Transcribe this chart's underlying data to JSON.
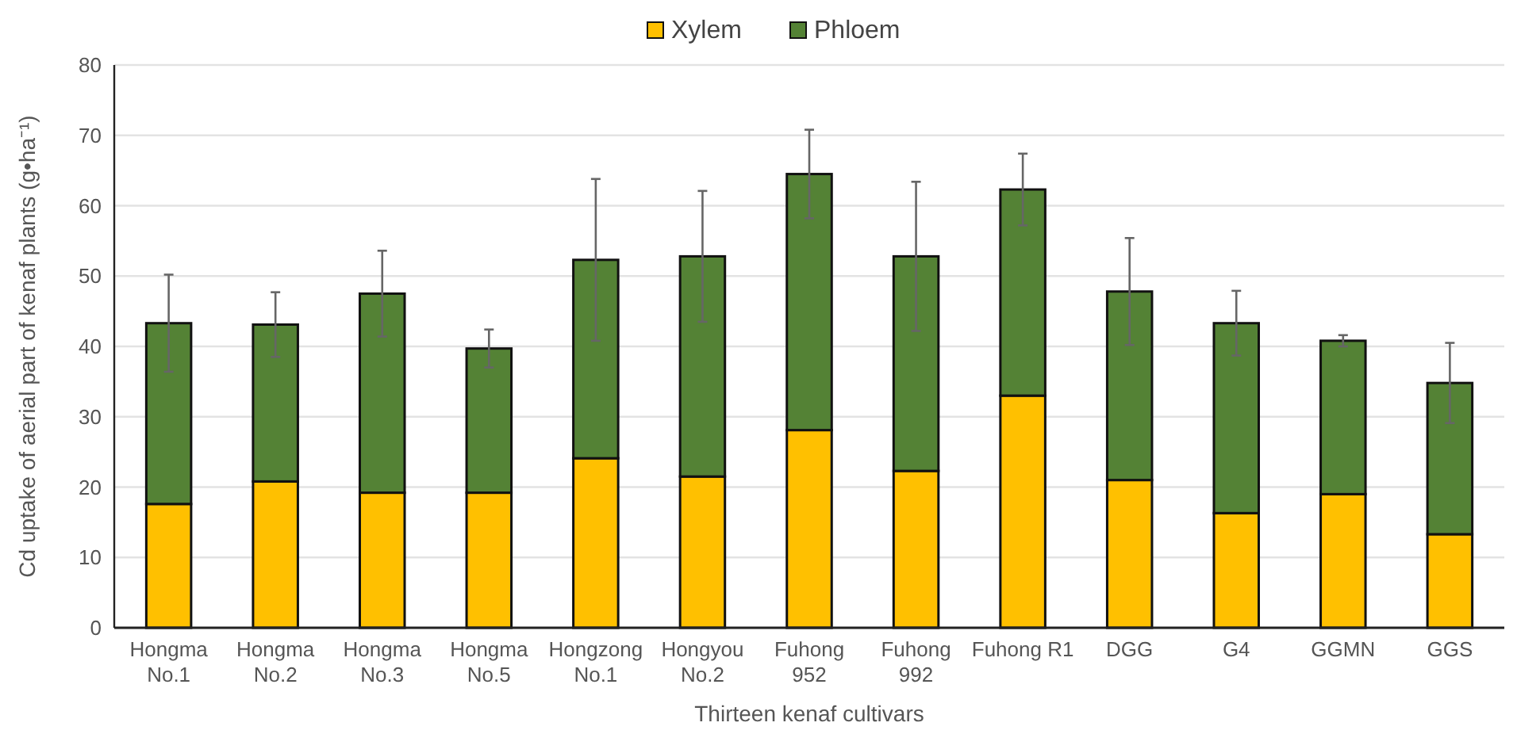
{
  "chart_data": {
    "type": "bar",
    "stacked": true,
    "xlabel": "Thirteen kenaf cultivars",
    "ylabel": "Cd uptake of aerial part of  kenaf plants (g•ha⁻¹)",
    "categories": [
      "Hongma No.1",
      "Hongma No.2",
      "Hongma No.3",
      "Hongma No.5",
      "Hongzong No.1",
      "Hongyou No.2",
      "Fuhong 952",
      "Fuhong 992",
      "Fuhong R1",
      "DGG",
      "G4",
      "GGMN",
      "GGS"
    ],
    "series": [
      {
        "name": "Xylem",
        "color": "#ffc000",
        "values": [
          17.6,
          20.8,
          19.2,
          19.2,
          24.1,
          21.5,
          28.1,
          22.3,
          33.0,
          21.0,
          16.3,
          19.0,
          13.3
        ]
      },
      {
        "name": "Phloem",
        "color": "#548235",
        "values": [
          25.7,
          22.3,
          28.3,
          20.5,
          28.2,
          31.3,
          36.4,
          30.5,
          29.3,
          26.8,
          27.0,
          21.8,
          21.5
        ],
        "errors": [
          6.9,
          4.6,
          6.1,
          2.7,
          11.5,
          9.3,
          6.3,
          10.6,
          5.1,
          7.6,
          4.6,
          0.8,
          5.7
        ]
      }
    ],
    "ylim": [
      0,
      80
    ],
    "yticks": [
      0,
      10,
      20,
      30,
      40,
      50,
      60,
      70,
      80
    ],
    "grid": "y",
    "legend": "top"
  }
}
